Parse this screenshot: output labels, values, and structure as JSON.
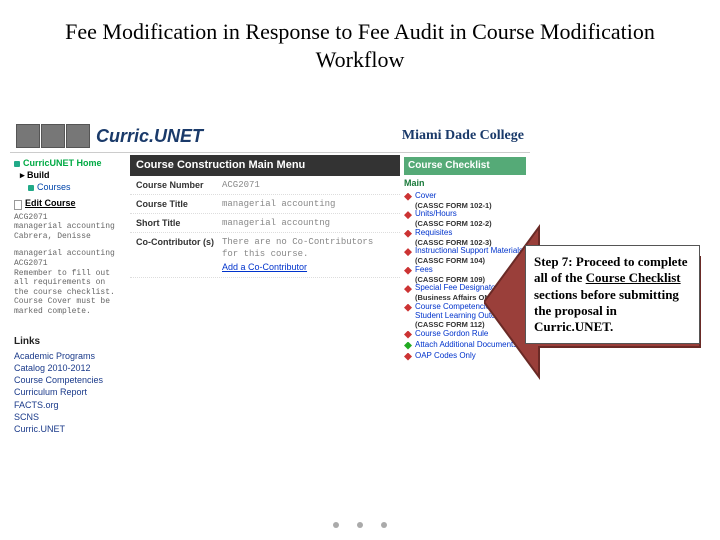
{
  "title": "Fee Modification in Response to Fee Audit in Course Modification Workflow",
  "header": {
    "logo_text": "Curric.UNET",
    "college": "Miami Dade College"
  },
  "leftnav": {
    "home": "CurricUNET Home",
    "build": "Build",
    "courses": "Courses",
    "edit_heading": "Edit Course",
    "micro1": "ACG2071\nmanagerial accounting\nCabrera, Denisse",
    "micro2": "managerial accounting\nACG2071\nRemember to fill out\nall requirements on\nthe course checklist.\nCourse Cover must be\nmarked complete.",
    "links_h": "Links",
    "links": [
      "Academic Programs",
      "Catalog 2010-2012",
      "Course Competencies",
      "Curriculum Report",
      "FACTS.org",
      "SCNS",
      "Curric.UNET"
    ]
  },
  "mid": {
    "heading": "Course Construction Main Menu",
    "fields": [
      {
        "label": "Course Number",
        "value": "ACG2071"
      },
      {
        "label": "Course Title",
        "value": "managerial accounting"
      },
      {
        "label": "Short Title",
        "value": "managerial accountng"
      },
      {
        "label": "Co-Contributor (s)",
        "value": "There are no Co-Contributors for this course.",
        "link": "Add a Co-Contributor"
      }
    ]
  },
  "checklist": {
    "heading": "Course Checklist",
    "main": "Main",
    "items": [
      {
        "text": "Cover",
        "form": "(CASSC FORM 102-1)",
        "color": "red"
      },
      {
        "text": "Units/Hours",
        "form": "(CASSC FORM 102-2)",
        "color": "red"
      },
      {
        "text": "Requisites",
        "form": "(CASSC FORM 102-3)",
        "color": "red"
      },
      {
        "text": "Instructional Support Materials",
        "form": "(CASSC FORM 104)",
        "color": "red"
      },
      {
        "text": "Fees",
        "form": "(CASSC FORM 109)",
        "color": "red"
      },
      {
        "text": "Special Fee Designators",
        "form": "(Business Affairs ONLY)",
        "color": "red"
      },
      {
        "text": "Course Competencies and Student Learning Outcomes",
        "form": "(CASSC FORM 112)",
        "color": "red"
      },
      {
        "text": "Course Gordon Rule",
        "form": "",
        "color": "red"
      },
      {
        "text": "Attach Additional Documents",
        "form": "",
        "color": "green"
      },
      {
        "text": "OAP Codes Only",
        "form": "",
        "color": "red"
      }
    ]
  },
  "callout": {
    "text_pre": "Step 7: Proceed to complete all of the ",
    "text_underline": "Course Checklist",
    "text_post": " sections before submitting the proposal in Curric.UNET.",
    "arrow_fill": "#9a3f3a",
    "arrow_border": "#6a2a26"
  }
}
